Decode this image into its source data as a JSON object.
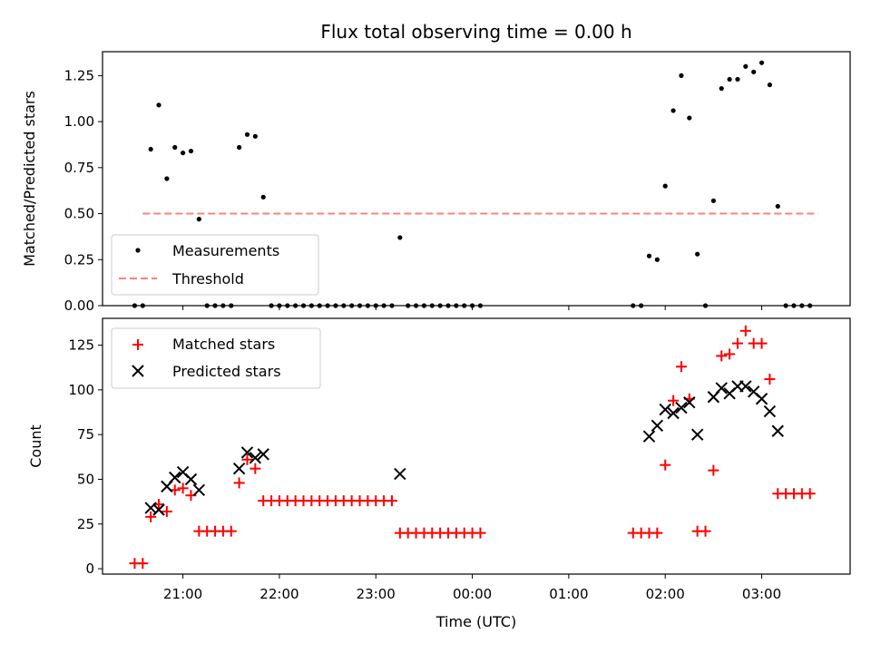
{
  "chart_data": [
    {
      "type": "scatter",
      "title": "Flux total observing time = 0.00 h",
      "ylabel": "Matched/Predicted stars",
      "ylim": [
        0,
        1.38
      ],
      "yticks": [
        "0.00",
        "0.25",
        "0.50",
        "0.75",
        "1.00",
        "1.25"
      ],
      "threshold": 0.5,
      "legend": {
        "placement": "lower-left",
        "entries": [
          "Measurements",
          "Threshold"
        ]
      },
      "series": [
        {
          "name": "Measurements",
          "color": "#000000",
          "marker": "dot",
          "points": [
            [
              "20:30",
              0.0
            ],
            [
              "20:35",
              0.0
            ],
            [
              "20:40",
              0.85
            ],
            [
              "20:45",
              1.09
            ],
            [
              "20:50",
              0.69
            ],
            [
              "20:55",
              0.86
            ],
            [
              "21:00",
              0.83
            ],
            [
              "21:05",
              0.84
            ],
            [
              "21:10",
              0.47
            ],
            [
              "21:15",
              0.0
            ],
            [
              "21:20",
              0.0
            ],
            [
              "21:25",
              0.0
            ],
            [
              "21:30",
              0.0
            ],
            [
              "21:35",
              0.86
            ],
            [
              "21:40",
              0.93
            ],
            [
              "21:45",
              0.92
            ],
            [
              "21:50",
              0.59
            ],
            [
              "21:55",
              0.0
            ],
            [
              "22:00",
              0.0
            ],
            [
              "22:05",
              0.0
            ],
            [
              "22:10",
              0.0
            ],
            [
              "22:15",
              0.0
            ],
            [
              "22:20",
              0.0
            ],
            [
              "22:25",
              0.0
            ],
            [
              "22:30",
              0.0
            ],
            [
              "22:35",
              0.0
            ],
            [
              "22:40",
              0.0
            ],
            [
              "22:45",
              0.0
            ],
            [
              "22:50",
              0.0
            ],
            [
              "22:55",
              0.0
            ],
            [
              "23:00",
              0.0
            ],
            [
              "23:05",
              0.0
            ],
            [
              "23:10",
              0.0
            ],
            [
              "23:15",
              0.37
            ],
            [
              "23:20",
              0.0
            ],
            [
              "23:25",
              0.0
            ],
            [
              "23:30",
              0.0
            ],
            [
              "23:35",
              0.0
            ],
            [
              "23:40",
              0.0
            ],
            [
              "23:45",
              0.0
            ],
            [
              "23:50",
              0.0
            ],
            [
              "23:55",
              0.0
            ],
            [
              "24:00",
              0.0
            ],
            [
              "24:05",
              0.0
            ],
            [
              "25:40",
              0.0
            ],
            [
              "25:45",
              0.0
            ],
            [
              "25:50",
              0.27
            ],
            [
              "25:55",
              0.25
            ],
            [
              "26:00",
              0.65
            ],
            [
              "26:05",
              1.06
            ],
            [
              "26:10",
              1.25
            ],
            [
              "26:15",
              1.02
            ],
            [
              "26:20",
              0.28
            ],
            [
              "26:25",
              0.0
            ],
            [
              "26:30",
              0.57
            ],
            [
              "26:35",
              1.18
            ],
            [
              "26:40",
              1.23
            ],
            [
              "26:45",
              1.23
            ],
            [
              "26:50",
              1.3
            ],
            [
              "26:55",
              1.27
            ],
            [
              "27:00",
              1.32
            ],
            [
              "27:05",
              1.2
            ],
            [
              "27:10",
              0.54
            ],
            [
              "27:15",
              0.0
            ],
            [
              "27:20",
              0.0
            ],
            [
              "27:25",
              0.0
            ],
            [
              "27:30",
              0.0
            ]
          ]
        },
        {
          "name": "Threshold",
          "color": "#ff8080",
          "style": "dashed",
          "points": [
            [
              "20:35",
              0.5
            ],
            [
              "27:35",
              0.5
            ]
          ]
        }
      ]
    },
    {
      "type": "scatter",
      "xlabel": "Time (UTC)",
      "ylabel": "Count",
      "ylim": [
        -3,
        140
      ],
      "yticks": [
        "0",
        "25",
        "50",
        "75",
        "100",
        "125"
      ],
      "xticks": [
        "21:00",
        "22:00",
        "23:00",
        "00:00",
        "01:00",
        "02:00",
        "03:00"
      ],
      "legend": {
        "placement": "upper-left",
        "entries": [
          "Matched stars",
          "Predicted stars"
        ]
      },
      "series": [
        {
          "name": "Matched stars",
          "color": "#ff0000",
          "marker": "plus",
          "points": [
            [
              "20:30",
              3
            ],
            [
              "20:35",
              3
            ],
            [
              "20:40",
              29
            ],
            [
              "20:45",
              36
            ],
            [
              "20:50",
              32
            ],
            [
              "20:55",
              44
            ],
            [
              "21:00",
              45
            ],
            [
              "21:05",
              41
            ],
            [
              "21:10",
              21
            ],
            [
              "21:15",
              21
            ],
            [
              "21:20",
              21
            ],
            [
              "21:25",
              21
            ],
            [
              "21:30",
              21
            ],
            [
              "21:35",
              48
            ],
            [
              "21:40",
              61
            ],
            [
              "21:45",
              56
            ],
            [
              "21:50",
              38
            ],
            [
              "21:55",
              38
            ],
            [
              "22:00",
              38
            ],
            [
              "22:05",
              38
            ],
            [
              "22:10",
              38
            ],
            [
              "22:15",
              38
            ],
            [
              "22:20",
              38
            ],
            [
              "22:25",
              38
            ],
            [
              "22:30",
              38
            ],
            [
              "22:35",
              38
            ],
            [
              "22:40",
              38
            ],
            [
              "22:45",
              38
            ],
            [
              "22:50",
              38
            ],
            [
              "22:55",
              38
            ],
            [
              "23:00",
              38
            ],
            [
              "23:05",
              38
            ],
            [
              "23:10",
              38
            ],
            [
              "23:15",
              20
            ],
            [
              "23:20",
              20
            ],
            [
              "23:25",
              20
            ],
            [
              "23:30",
              20
            ],
            [
              "23:35",
              20
            ],
            [
              "23:40",
              20
            ],
            [
              "23:45",
              20
            ],
            [
              "23:50",
              20
            ],
            [
              "23:55",
              20
            ],
            [
              "24:00",
              20
            ],
            [
              "24:05",
              20
            ],
            [
              "25:40",
              20
            ],
            [
              "25:45",
              20
            ],
            [
              "25:50",
              20
            ],
            [
              "25:55",
              20
            ],
            [
              "26:00",
              58
            ],
            [
              "26:05",
              94
            ],
            [
              "26:10",
              113
            ],
            [
              "26:15",
              95
            ],
            [
              "26:20",
              21
            ],
            [
              "26:25",
              21
            ],
            [
              "26:30",
              55
            ],
            [
              "26:35",
              119
            ],
            [
              "26:40",
              120
            ],
            [
              "26:45",
              126
            ],
            [
              "26:50",
              133
            ],
            [
              "26:55",
              126
            ],
            [
              "27:00",
              126
            ],
            [
              "27:05",
              106
            ],
            [
              "27:10",
              42
            ],
            [
              "27:15",
              42
            ],
            [
              "27:20",
              42
            ],
            [
              "27:25",
              42
            ],
            [
              "27:30",
              42
            ]
          ]
        },
        {
          "name": "Predicted stars",
          "color": "#000000",
          "marker": "x",
          "points": [
            [
              "20:40",
              34
            ],
            [
              "20:45",
              33
            ],
            [
              "20:50",
              46
            ],
            [
              "20:55",
              51
            ],
            [
              "21:00",
              54
            ],
            [
              "21:05",
              50
            ],
            [
              "21:10",
              44
            ],
            [
              "21:35",
              56
            ],
            [
              "21:40",
              65
            ],
            [
              "21:45",
              62
            ],
            [
              "21:50",
              64
            ],
            [
              "23:15",
              53
            ],
            [
              "25:50",
              74
            ],
            [
              "25:55",
              80
            ],
            [
              "26:00",
              89
            ],
            [
              "26:05",
              87
            ],
            [
              "26:10",
              90
            ],
            [
              "26:15",
              93
            ],
            [
              "26:20",
              75
            ],
            [
              "26:30",
              96
            ],
            [
              "26:35",
              101
            ],
            [
              "26:40",
              98
            ],
            [
              "26:45",
              102
            ],
            [
              "26:50",
              102
            ],
            [
              "26:55",
              99
            ],
            [
              "27:00",
              95
            ],
            [
              "27:05",
              88
            ],
            [
              "27:10",
              77
            ]
          ]
        }
      ]
    }
  ]
}
